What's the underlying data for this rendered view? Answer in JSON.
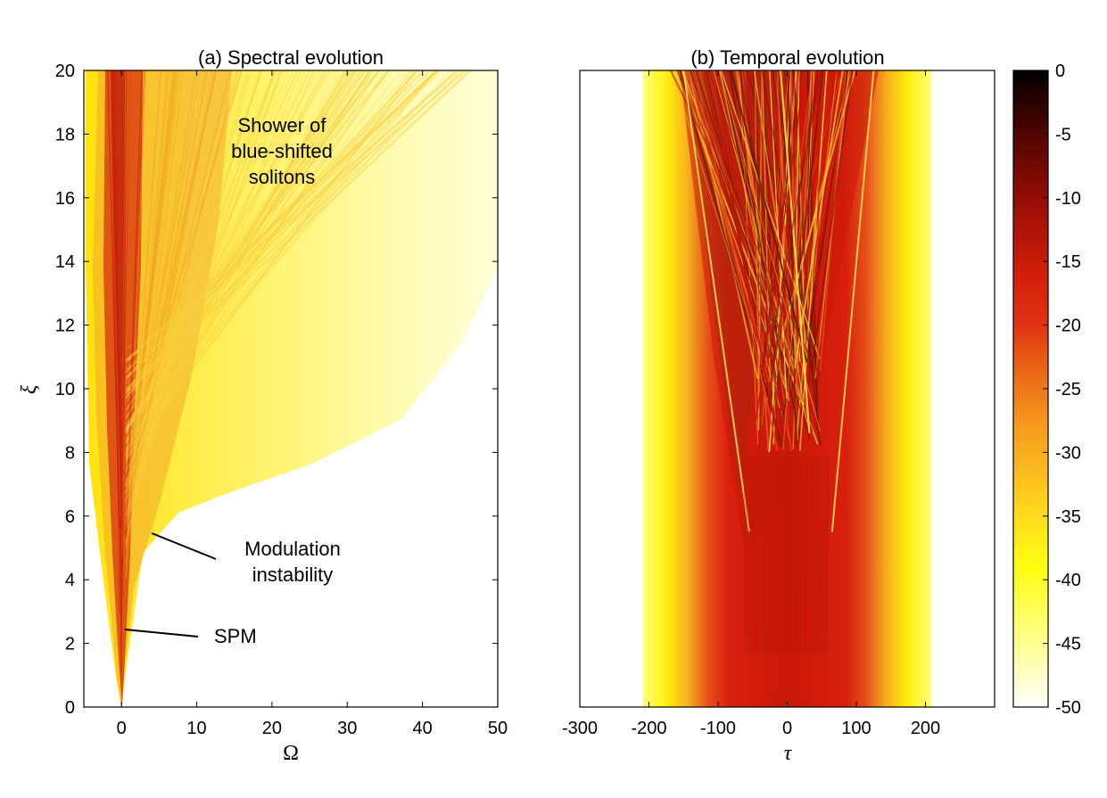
{
  "chart_data": [
    {
      "type": "heatmap",
      "title": "(a) Spectral evolution",
      "xlabel": "Ω",
      "ylabel": "ξ",
      "xlim": [
        -5,
        50
      ],
      "ylim": [
        0,
        20
      ],
      "xticks": [
        0,
        10,
        20,
        30,
        40,
        50
      ],
      "yticks": [
        0,
        2,
        4,
        6,
        8,
        10,
        12,
        14,
        16,
        18,
        20
      ],
      "annotations": [
        {
          "text_lines": [
            "Shower of",
            "blue-shifted",
            "solitons"
          ],
          "x": 23,
          "y": 17.4
        },
        {
          "text_lines": [
            "Modulation",
            "instability"
          ],
          "x": 23,
          "y": 4.8,
          "arrow_to": [
            4,
            5.5
          ]
        },
        {
          "text_lines": [
            "SPM"
          ],
          "x": 15,
          "y": 2.2,
          "arrow_to": [
            0.5,
            2.5
          ]
        }
      ]
    },
    {
      "type": "heatmap",
      "title": "(b) Temporal evolution",
      "xlabel": "τ",
      "ylabel": "",
      "xlim": [
        -300,
        300
      ],
      "ylim": [
        0,
        20
      ],
      "xticks": [
        -300,
        -200,
        -100,
        0,
        100,
        200
      ],
      "pulse_halfwidth_db_band": 210,
      "fission_start_xi": 8.0
    }
  ],
  "colorbar": {
    "min": -50,
    "max": 0,
    "ticks": [
      0,
      -5,
      -10,
      -15,
      -20,
      -25,
      -30,
      -35,
      -40,
      -45,
      -50
    ],
    "colormap": [
      "#ffffff",
      "#ffff80",
      "#ffff00",
      "#ffd21e",
      "#f5961e",
      "#e63c14",
      "#dc1e0a",
      "#c8140a",
      "#8c0a05",
      "#500500",
      "#000000"
    ]
  }
}
